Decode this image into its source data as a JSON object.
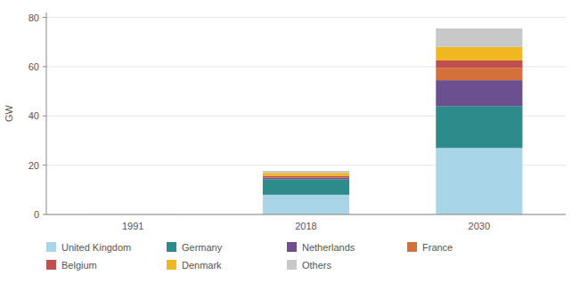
{
  "chart_data": {
    "type": "bar",
    "stacked": true,
    "categories": [
      "1991",
      "2018",
      "2030"
    ],
    "series": [
      {
        "name": "United Kingdom",
        "color": "#a8d5e8",
        "values": [
          0.05,
          8.0,
          27.0
        ]
      },
      {
        "name": "Germany",
        "color": "#2e8b8c",
        "values": [
          0.0,
          6.3,
          17.0
        ]
      },
      {
        "name": "Netherlands",
        "color": "#6b4f8f",
        "values": [
          0.0,
          0.5,
          10.5
        ]
      },
      {
        "name": "France",
        "color": "#d4703a",
        "values": [
          0.0,
          0.3,
          5.0
        ]
      },
      {
        "name": "Belgium",
        "color": "#c05050",
        "values": [
          0.0,
          0.6,
          3.0
        ]
      },
      {
        "name": "Denmark",
        "color": "#f0b820",
        "values": [
          0.0,
          1.2,
          5.5
        ]
      },
      {
        "name": "Others",
        "color": "#c8c8c8",
        "values": [
          0.0,
          0.8,
          7.5
        ]
      }
    ],
    "ylabel": "GW",
    "ylim": [
      0,
      82
    ],
    "yticks": [
      0,
      20,
      40,
      60,
      80
    ],
    "grid": true,
    "legend": "bottom"
  }
}
